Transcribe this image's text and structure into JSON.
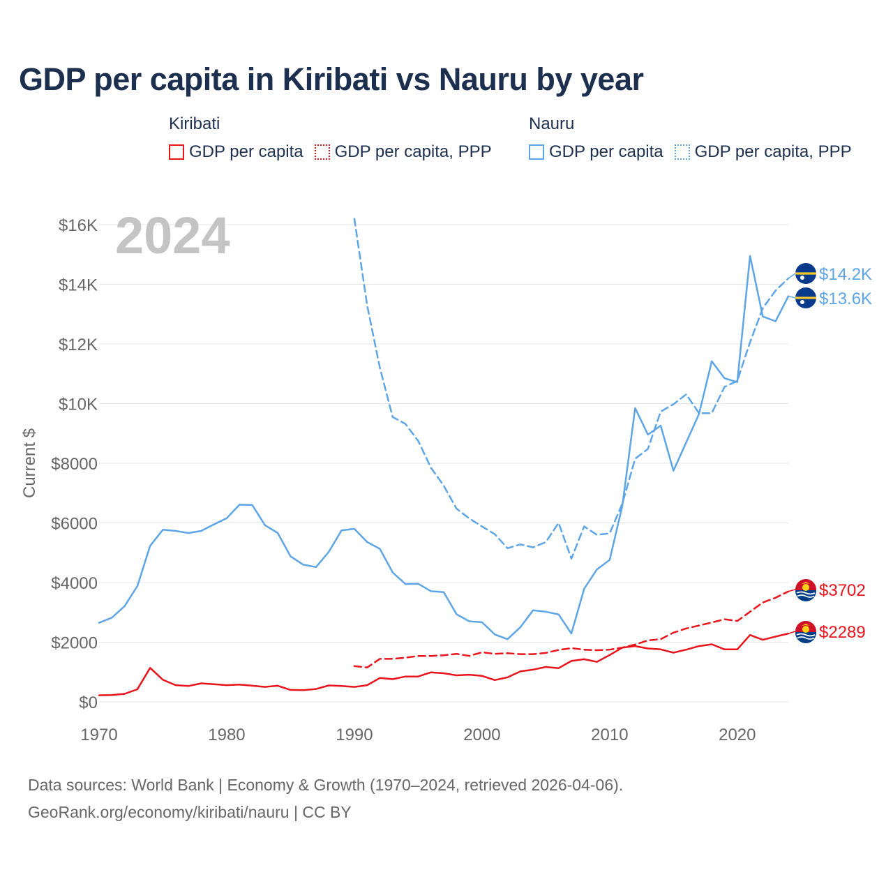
{
  "title": "GDP per capita in Kiribati vs Nauru by year",
  "legend": {
    "groups": [
      {
        "title": "Kiribati",
        "items": [
          {
            "label": "GDP per capita",
            "color": "#e8141c",
            "style": "solid"
          },
          {
            "label": "GDP per capita, PPP",
            "color": "#e8141c",
            "style": "dotted"
          }
        ]
      },
      {
        "title": "Nauru",
        "items": [
          {
            "label": "GDP per capita",
            "color": "#5ea5e6",
            "style": "solid"
          },
          {
            "label": "GDP per capita, PPP",
            "color": "#5ea5e6",
            "style": "dotted"
          }
        ]
      }
    ]
  },
  "footer": {
    "line1": "Data sources: World Bank | Economy & Growth (1970–2024, retrieved 2026-04-06).",
    "line2": "GeoRank.org/economy/kiribati/nauru | CC BY"
  },
  "chart_data": {
    "type": "line",
    "year_watermark": "2024",
    "ylabel": "Current $",
    "xlim": [
      1970,
      2024
    ],
    "ylim": [
      0,
      16000
    ],
    "x_ticks": [
      1970,
      1980,
      1990,
      2000,
      2010,
      2020
    ],
    "x_tick_labels": [
      "1970",
      "1980",
      "1990",
      "2000",
      "2010",
      "2020"
    ],
    "y_ticks": [
      0,
      2000,
      4000,
      6000,
      8000,
      10000,
      12000,
      14000,
      16000
    ],
    "y_tick_labels": [
      "$0",
      "$2000",
      "$4000",
      "$6000",
      "$8000",
      "$10K",
      "$12K",
      "$14K",
      "$16K"
    ],
    "series": [
      {
        "name": "Nauru GDP per capita, PPP",
        "country": "Nauru",
        "color": "#5ea5e6",
        "dash": "dashed",
        "end_label": "$14.2K",
        "x": [
          1990,
          1991,
          1992,
          1993,
          1994,
          1995,
          1996,
          1997,
          1998,
          1999,
          2000,
          2001,
          2002,
          2003,
          2004,
          2005,
          2006,
          2007,
          2008,
          2009,
          2010,
          2011,
          2012,
          2013,
          2014,
          2015,
          2016,
          2017,
          2018,
          2019,
          2020,
          2021,
          2022,
          2023,
          2024
        ],
        "values": [
          16200,
          13300,
          11200,
          9550,
          9320,
          8750,
          7850,
          7250,
          6480,
          6150,
          5880,
          5620,
          5150,
          5280,
          5180,
          5360,
          6000,
          4800,
          5880,
          5600,
          5650,
          6650,
          8150,
          8480,
          9730,
          9980,
          10310,
          9680,
          9680,
          10560,
          10760,
          12060,
          13200,
          13790,
          14200
        ]
      },
      {
        "name": "Nauru GDP per capita",
        "country": "Nauru",
        "color": "#5ea5e6",
        "dash": "solid",
        "end_label": "$13.6K",
        "x": [
          1970,
          1971,
          1972,
          1973,
          1974,
          1975,
          1976,
          1977,
          1978,
          1979,
          1980,
          1981,
          1982,
          1983,
          1984,
          1985,
          1986,
          1987,
          1988,
          1989,
          1990,
          1991,
          1992,
          1993,
          1994,
          1995,
          1996,
          1997,
          1998,
          1999,
          2000,
          2001,
          2002,
          2003,
          2004,
          2005,
          2006,
          2007,
          2008,
          2009,
          2010,
          2011,
          2012,
          2013,
          2014,
          2015,
          2016,
          2017,
          2018,
          2019,
          2020,
          2021,
          2022,
          2023,
          2024
        ],
        "values": [
          2650,
          2820,
          3210,
          3880,
          5230,
          5770,
          5730,
          5660,
          5730,
          5950,
          6160,
          6610,
          6600,
          5920,
          5660,
          4880,
          4600,
          4520,
          5030,
          5750,
          5800,
          5360,
          5130,
          4340,
          3950,
          3960,
          3710,
          3680,
          2940,
          2700,
          2670,
          2260,
          2100,
          2500,
          3070,
          3020,
          2930,
          2290,
          3790,
          4440,
          4760,
          6580,
          9850,
          8960,
          9260,
          7750,
          8700,
          9650,
          11420,
          10850,
          10720,
          14950,
          12920,
          12760,
          13600
        ]
      },
      {
        "name": "Kiribati GDP per capita, PPP",
        "country": "Kiribati",
        "color": "#e8141c",
        "dash": "dashed",
        "end_label": "$3702",
        "x": [
          1990,
          1991,
          1992,
          1993,
          1994,
          1995,
          1996,
          1997,
          1998,
          1999,
          2000,
          2001,
          2002,
          2003,
          2004,
          2005,
          2006,
          2007,
          2008,
          2009,
          2010,
          2011,
          2012,
          2013,
          2014,
          2015,
          2016,
          2017,
          2018,
          2019,
          2020,
          2021,
          2022,
          2023,
          2024
        ],
        "values": [
          1200,
          1150,
          1440,
          1440,
          1480,
          1540,
          1540,
          1560,
          1610,
          1540,
          1660,
          1610,
          1630,
          1600,
          1600,
          1640,
          1740,
          1800,
          1750,
          1730,
          1750,
          1820,
          1920,
          2060,
          2100,
          2320,
          2460,
          2560,
          2660,
          2770,
          2710,
          3020,
          3330,
          3490,
          3702
        ]
      },
      {
        "name": "Kiribati GDP per capita",
        "country": "Kiribati",
        "color": "#e8141c",
        "dash": "solid",
        "end_label": "$2289",
        "x": [
          1970,
          1971,
          1972,
          1973,
          1974,
          1975,
          1976,
          1977,
          1978,
          1979,
          1980,
          1981,
          1982,
          1983,
          1984,
          1985,
          1986,
          1987,
          1988,
          1989,
          1990,
          1991,
          1992,
          1993,
          1994,
          1995,
          1996,
          1997,
          1998,
          1999,
          2000,
          2001,
          2002,
          2003,
          2004,
          2005,
          2006,
          2007,
          2008,
          2009,
          2010,
          2011,
          2012,
          2013,
          2014,
          2015,
          2016,
          2017,
          2018,
          2019,
          2020,
          2021,
          2022,
          2023,
          2024
        ],
        "values": [
          220,
          230,
          270,
          420,
          1140,
          740,
          560,
          530,
          620,
          590,
          560,
          580,
          540,
          500,
          540,
          400,
          390,
          430,
          550,
          530,
          500,
          560,
          800,
          760,
          850,
          850,
          990,
          960,
          890,
          910,
          870,
          730,
          820,
          1020,
          1080,
          1170,
          1130,
          1370,
          1430,
          1340,
          1570,
          1820,
          1870,
          1790,
          1760,
          1650,
          1750,
          1870,
          1930,
          1760,
          1760,
          2240,
          2080,
          2190,
          2289
        ]
      }
    ],
    "end_labels": [
      {
        "text": "$14.2K",
        "color": "#5ea5e6",
        "flag": "nauru-flag"
      },
      {
        "text": "$13.6K",
        "color": "#5ea5e6",
        "flag": "nauru-flag"
      },
      {
        "text": "$3702",
        "color": "#e8141c",
        "flag": "kiribati-flag"
      },
      {
        "text": "$2289",
        "color": "#e8141c",
        "flag": "kiribati-flag"
      }
    ],
    "flag_colors": {
      "nauru_blue": "#0a3a8c",
      "nauru_yellow": "#ffc72c",
      "kiribati_red": "#ce1126",
      "kiribati_blue": "#003f87",
      "kiribati_yellow": "#fcd116"
    }
  }
}
